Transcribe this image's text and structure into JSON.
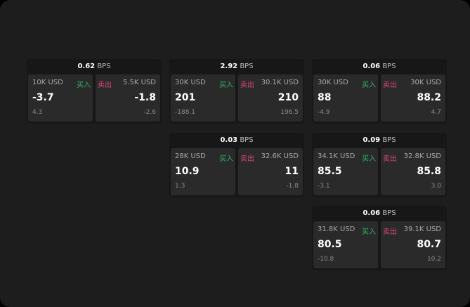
{
  "buy_label": "买入",
  "sell_label": "卖出",
  "unit": "BPS",
  "colors": {
    "buy": "#2fb36a",
    "sell": "#e0457b"
  },
  "cards": [
    {
      "spread": "0.62",
      "bid": {
        "qty": "10K USD",
        "price": "-3.7",
        "change": "4.3"
      },
      "ask": {
        "qty": "5.5K USD",
        "price": "-1.8",
        "change": "-2.6"
      }
    },
    {
      "spread": "2.92",
      "bid": {
        "qty": "30K USD",
        "price": "201",
        "change": "-188.1"
      },
      "ask": {
        "qty": "30.1K USD",
        "price": "210",
        "change": "196.5"
      }
    },
    {
      "spread": "0.06",
      "bid": {
        "qty": "30K USD",
        "price": "88",
        "change": "-4.9"
      },
      "ask": {
        "qty": "30K USD",
        "price": "88.2",
        "change": "4.7"
      }
    },
    {
      "spread": "0.03",
      "bid": {
        "qty": "28K USD",
        "price": "10.9",
        "change": "1.3"
      },
      "ask": {
        "qty": "32.6K USD",
        "price": "11",
        "change": "-1.8"
      }
    },
    {
      "spread": "0.09",
      "bid": {
        "qty": "34.1K USD",
        "price": "85.5",
        "change": "-3.1"
      },
      "ask": {
        "qty": "32.8K USD",
        "price": "85.8",
        "change": "3.0"
      }
    },
    {
      "spread": "0.06",
      "bid": {
        "qty": "31.8K USD",
        "price": "80.5",
        "change": "-10.8"
      },
      "ask": {
        "qty": "39.1K USD",
        "price": "80.7",
        "change": "10.2"
      }
    }
  ]
}
